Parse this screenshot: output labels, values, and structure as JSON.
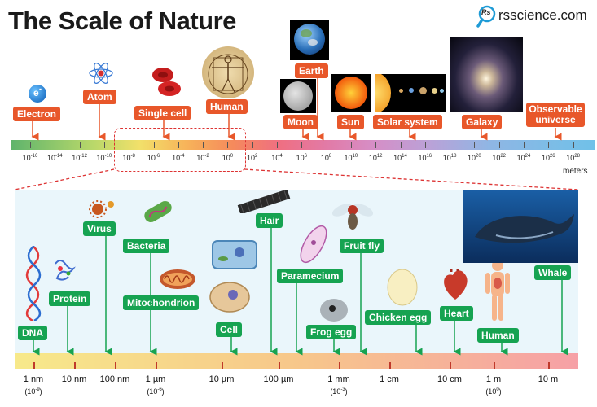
{
  "header": {
    "title": "The Scale of Nature",
    "site": "rsscience.com",
    "logo_letters": "Rs",
    "logo_icon": "magnifier-icon"
  },
  "top_scale": {
    "items": [
      {
        "label": "Electron",
        "exp": -16
      },
      {
        "label": "Atom",
        "exp": -10
      },
      {
        "label": "Single cell",
        "exp": -5
      },
      {
        "label": "Human",
        "exp": 0
      },
      {
        "label": "Moon",
        "exp": 6
      },
      {
        "label": "Earth",
        "exp": 7
      },
      {
        "label": "Sun",
        "exp": 9
      },
      {
        "label": "Solar system",
        "exp": 13
      },
      {
        "label": "Galaxy",
        "exp": 20
      },
      {
        "label": "Observable universe",
        "exp": 26
      }
    ],
    "electron_symbol": "e",
    "electron_charge": "-",
    "ticks": [
      "-16",
      "-14",
      "-12",
      "-10",
      "-8",
      "-6",
      "-4",
      "-2",
      "0",
      "2",
      "4",
      "6",
      "8",
      "10",
      "12",
      "14",
      "16",
      "18",
      "20",
      "22",
      "24",
      "26",
      "28"
    ],
    "tick_base": "10",
    "unit": "meters"
  },
  "bottom_scale": {
    "ticks": [
      {
        "label": "1 nm",
        "sub": "(10",
        "sub_exp": "-9",
        "sub_end": ")"
      },
      {
        "label": "10 nm"
      },
      {
        "label": "100 nm"
      },
      {
        "label": "1 µm",
        "sub": "(10",
        "sub_exp": "-6",
        "sub_end": ")"
      },
      {
        "label": "10 µm"
      },
      {
        "label": "100 µm"
      },
      {
        "label": "1 mm",
        "sub": "(10",
        "sub_exp": "-3",
        "sub_end": ")"
      },
      {
        "label": "1 cm"
      },
      {
        "label": "10 cm"
      },
      {
        "label": "1 m",
        "sub": "(10",
        "sub_exp": "0",
        "sub_end": ")"
      },
      {
        "label": "10 m"
      }
    ],
    "items": [
      {
        "label": "DNA"
      },
      {
        "label": "Protein"
      },
      {
        "label": "Virus"
      },
      {
        "label": "Bacteria"
      },
      {
        "label": "Mitochondrion"
      },
      {
        "label": "Cell"
      },
      {
        "label": "Hair"
      },
      {
        "label": "Paramecium"
      },
      {
        "label": "Frog egg"
      },
      {
        "label": "Fruit fly"
      },
      {
        "label": "Chicken egg"
      },
      {
        "label": "Heart"
      },
      {
        "label": "Human"
      },
      {
        "label": "Whale"
      }
    ]
  },
  "colors": {
    "orange_label": "#e8572a",
    "green_label": "#16a351",
    "panel_bg": "#eaf6fb",
    "zoom_dash": "#dd3333"
  }
}
